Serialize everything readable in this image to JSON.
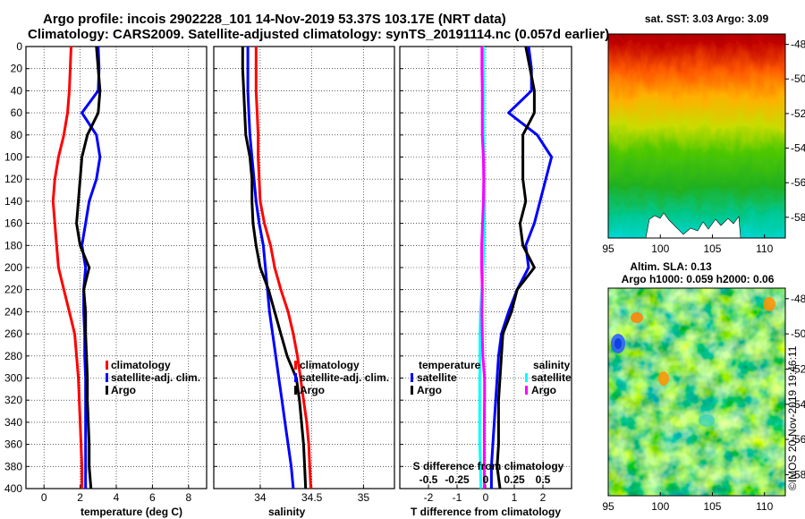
{
  "header": {
    "line1": "Argo profile: incois 2902228_101 14-Nov-2019 53.37S 103.17E (NRT data)",
    "line2": "Climatology: CARS2009. Satellite-adjusted climatology: synTS_20191114.nc (0.057d earlier)"
  },
  "watermark": "©IMOS 20-Nov-2019 19:46:11",
  "colors": {
    "red": "#ff0000",
    "blue": "#0000ff",
    "black": "#000000",
    "cyan": "#00ffff",
    "magenta": "#ff00ff"
  },
  "chart_data": [
    {
      "type": "line",
      "id": "temperature",
      "xlabel": "temperature (deg C)",
      "ylabel": "",
      "xlim": [
        -1,
        9
      ],
      "ylim": [
        400,
        0
      ],
      "xticks": [
        0,
        2,
        4,
        6,
        8
      ],
      "yticks": [
        0,
        20,
        40,
        60,
        80,
        100,
        120,
        140,
        160,
        180,
        200,
        220,
        240,
        260,
        280,
        300,
        320,
        340,
        360,
        380,
        400
      ],
      "grid": true,
      "legend": {
        "position": "right-middle",
        "entries": [
          {
            "label": "climatology",
            "color": "#ff0000"
          },
          {
            "label": "satellite-adj. clim.",
            "color": "#0000ff"
          },
          {
            "label": "Argo",
            "color": "#000000"
          }
        ]
      },
      "series": [
        {
          "name": "climatology",
          "color": "#ff0000",
          "x": [
            1.5,
            1.45,
            1.4,
            1.3,
            1.1,
            0.8,
            0.6,
            0.5,
            0.6,
            0.7,
            0.8,
            1.1,
            1.4,
            1.7,
            1.8,
            1.9,
            1.95,
            2.0,
            2.05,
            2.1,
            2.1
          ],
          "y": [
            0,
            20,
            40,
            60,
            80,
            100,
            120,
            140,
            160,
            180,
            200,
            220,
            240,
            260,
            280,
            300,
            320,
            340,
            360,
            380,
            400
          ]
        },
        {
          "name": "satellite-adj. clim.",
          "color": "#0000ff",
          "x": [
            3.0,
            3.05,
            3.0,
            2.1,
            2.9,
            3.1,
            2.9,
            2.5,
            2.3,
            2.1,
            2.3,
            2.2,
            2.2,
            2.25,
            2.25,
            2.3,
            2.3,
            2.3,
            2.3,
            2.3,
            2.3
          ],
          "y": [
            0,
            20,
            40,
            60,
            80,
            100,
            120,
            140,
            160,
            180,
            200,
            220,
            240,
            260,
            280,
            300,
            320,
            340,
            360,
            380,
            400
          ]
        },
        {
          "name": "Argo",
          "color": "#000000",
          "x": [
            2.9,
            3.0,
            3.1,
            3.0,
            2.4,
            2.1,
            2.0,
            1.9,
            1.8,
            2.0,
            2.5,
            2.2,
            2.3,
            2.3,
            2.35,
            2.4,
            2.4,
            2.45,
            2.5,
            2.5,
            2.6
          ],
          "y": [
            0,
            20,
            40,
            60,
            80,
            100,
            120,
            140,
            160,
            180,
            200,
            220,
            240,
            260,
            280,
            300,
            320,
            340,
            360,
            380,
            400
          ]
        }
      ]
    },
    {
      "type": "line",
      "id": "salinity",
      "xlabel": "salinity",
      "xlim": [
        33.55,
        35.3
      ],
      "ylim": [
        400,
        0
      ],
      "xticks": [
        34,
        34.5,
        35
      ],
      "xticklabels": [
        "34",
        "34.5",
        "35"
      ],
      "grid": true,
      "legend": {
        "position": "right-middle",
        "entries": [
          {
            "label": "climatology",
            "color": "#ff0000"
          },
          {
            "label": "satellite-adj. clim.",
            "color": "#0000ff"
          },
          {
            "label": "Argo",
            "color": "#000000"
          }
        ]
      },
      "series": [
        {
          "name": "climatology",
          "color": "#ff0000",
          "x": [
            33.96,
            33.96,
            33.96,
            33.97,
            33.98,
            33.98,
            33.99,
            34.0,
            34.04,
            34.1,
            34.14,
            34.2,
            34.27,
            34.32,
            34.36,
            34.39,
            34.42,
            34.45,
            34.47,
            34.48,
            34.49
          ],
          "y": [
            0,
            20,
            40,
            60,
            80,
            100,
            120,
            140,
            160,
            180,
            200,
            220,
            240,
            260,
            280,
            300,
            320,
            340,
            360,
            380,
            400
          ]
        },
        {
          "name": "satellite-adj. clim.",
          "color": "#0000ff",
          "x": [
            33.88,
            33.88,
            33.88,
            33.89,
            33.9,
            33.92,
            33.94,
            33.96,
            33.99,
            34.03,
            34.05,
            34.07,
            34.09,
            34.12,
            34.15,
            34.18,
            34.21,
            34.24,
            34.27,
            34.3,
            34.32
          ],
          "y": [
            0,
            20,
            40,
            60,
            80,
            100,
            120,
            140,
            160,
            180,
            200,
            220,
            240,
            260,
            280,
            300,
            320,
            340,
            360,
            380,
            400
          ]
        },
        {
          "name": "Argo",
          "color": "#000000",
          "x": [
            33.83,
            33.83,
            33.84,
            33.85,
            33.86,
            33.9,
            33.92,
            33.92,
            33.93,
            33.96,
            34.0,
            34.08,
            34.14,
            34.2,
            34.26,
            34.35,
            34.38,
            34.4,
            34.42,
            34.43,
            34.44
          ],
          "y": [
            0,
            20,
            40,
            60,
            80,
            100,
            120,
            140,
            160,
            180,
            200,
            220,
            240,
            260,
            280,
            300,
            320,
            340,
            360,
            380,
            400
          ]
        }
      ]
    },
    {
      "type": "line",
      "id": "difference",
      "xlabel": "T difference from climatology",
      "top_axis_label": "S difference from climatology",
      "xlim": [
        -3,
        3
      ],
      "ylim": [
        400,
        0
      ],
      "xticks": [
        -2,
        -1,
        0,
        1,
        2
      ],
      "xticklabels": [
        "-2",
        "-1",
        "0",
        "1",
        "2"
      ],
      "top_ticklabels": [
        "-0.5",
        "-0.25",
        "0",
        "0.25",
        "0.5"
      ],
      "grid": true,
      "legend_temperature": {
        "title": "temperature",
        "entries": [
          {
            "label": "satellite",
            "color": "#0000ff"
          },
          {
            "label": "Argo",
            "color": "#000000"
          }
        ]
      },
      "legend_salinity": {
        "title": "salinity",
        "entries": [
          {
            "label": "satellite",
            "color": "#00ffff"
          },
          {
            "label": "Argo",
            "color": "#ff00ff"
          }
        ]
      },
      "series": [
        {
          "name": "temperature satellite",
          "color": "#0000ff",
          "x": [
            1.5,
            1.6,
            1.6,
            0.8,
            1.8,
            2.3,
            2.1,
            1.9,
            1.7,
            1.4,
            1.5,
            1.1,
            0.8,
            0.55,
            0.45,
            0.4,
            0.35,
            0.3,
            0.25,
            0.2,
            0.2
          ],
          "y": [
            0,
            20,
            40,
            60,
            80,
            100,
            120,
            140,
            160,
            180,
            200,
            220,
            240,
            260,
            280,
            300,
            320,
            340,
            360,
            380,
            400
          ]
        },
        {
          "name": "temperature Argo",
          "color": "#000000",
          "x": [
            1.4,
            1.55,
            1.7,
            1.7,
            1.3,
            1.3,
            1.3,
            1.4,
            1.2,
            1.3,
            1.7,
            1.1,
            0.9,
            0.6,
            0.55,
            0.5,
            0.45,
            0.45,
            0.45,
            0.4,
            0.5
          ],
          "y": [
            0,
            20,
            40,
            60,
            80,
            100,
            120,
            140,
            160,
            180,
            200,
            220,
            240,
            260,
            280,
            300,
            320,
            340,
            360,
            380,
            400
          ]
        },
        {
          "name": "salinity satellite",
          "color": "#00ffff",
          "x": [
            -0.08,
            -0.08,
            -0.08,
            -0.08,
            -0.08,
            -0.06,
            -0.05,
            -0.04,
            -0.05,
            -0.07,
            -0.09,
            -0.13,
            -0.18,
            -0.2,
            -0.2,
            -0.21,
            -0.21,
            -0.21,
            -0.21,
            -0.18,
            -0.17
          ],
          "y": [
            0,
            20,
            40,
            60,
            80,
            100,
            120,
            140,
            160,
            180,
            200,
            220,
            240,
            260,
            280,
            300,
            320,
            340,
            360,
            380,
            400
          ]
        },
        {
          "name": "salinity Argo",
          "color": "#ff00ff",
          "x": [
            -0.13,
            -0.13,
            -0.12,
            -0.12,
            -0.12,
            -0.08,
            -0.07,
            -0.08,
            -0.11,
            -0.14,
            -0.14,
            -0.12,
            -0.13,
            -0.12,
            -0.1,
            -0.04,
            -0.04,
            -0.05,
            -0.05,
            -0.05,
            -0.05
          ],
          "y": [
            0,
            20,
            40,
            60,
            80,
            100,
            120,
            140,
            160,
            180,
            200,
            220,
            240,
            260,
            280,
            300,
            320,
            340,
            360,
            380,
            400
          ]
        }
      ]
    },
    {
      "type": "heatmap",
      "id": "sst_map",
      "title": "sat. SST: 3.03 Argo: 3.09",
      "xlim": [
        95,
        112
      ],
      "ylim": [
        -59.2,
        -47.4
      ],
      "xticks": [
        95,
        100,
        105,
        110
      ],
      "yticks": [
        -48,
        -50,
        -52,
        -54,
        -56,
        -58
      ],
      "profile_location": {
        "lon": 103.17,
        "lat": -53.37
      }
    },
    {
      "type": "heatmap",
      "id": "sla_map",
      "title_line1": "Altim. SLA: 0.13",
      "title_line2": "Argo h1000: 0.059 h2000: 0.06",
      "xlim": [
        95,
        112
      ],
      "ylim": [
        -59.2,
        -47.4
      ],
      "xticks": [
        95,
        100,
        105,
        110
      ],
      "yticks": [
        -48,
        -50,
        -52,
        -54,
        -56,
        -58
      ],
      "profile_location": {
        "lon": 103.17,
        "lat": -53.37
      }
    }
  ]
}
